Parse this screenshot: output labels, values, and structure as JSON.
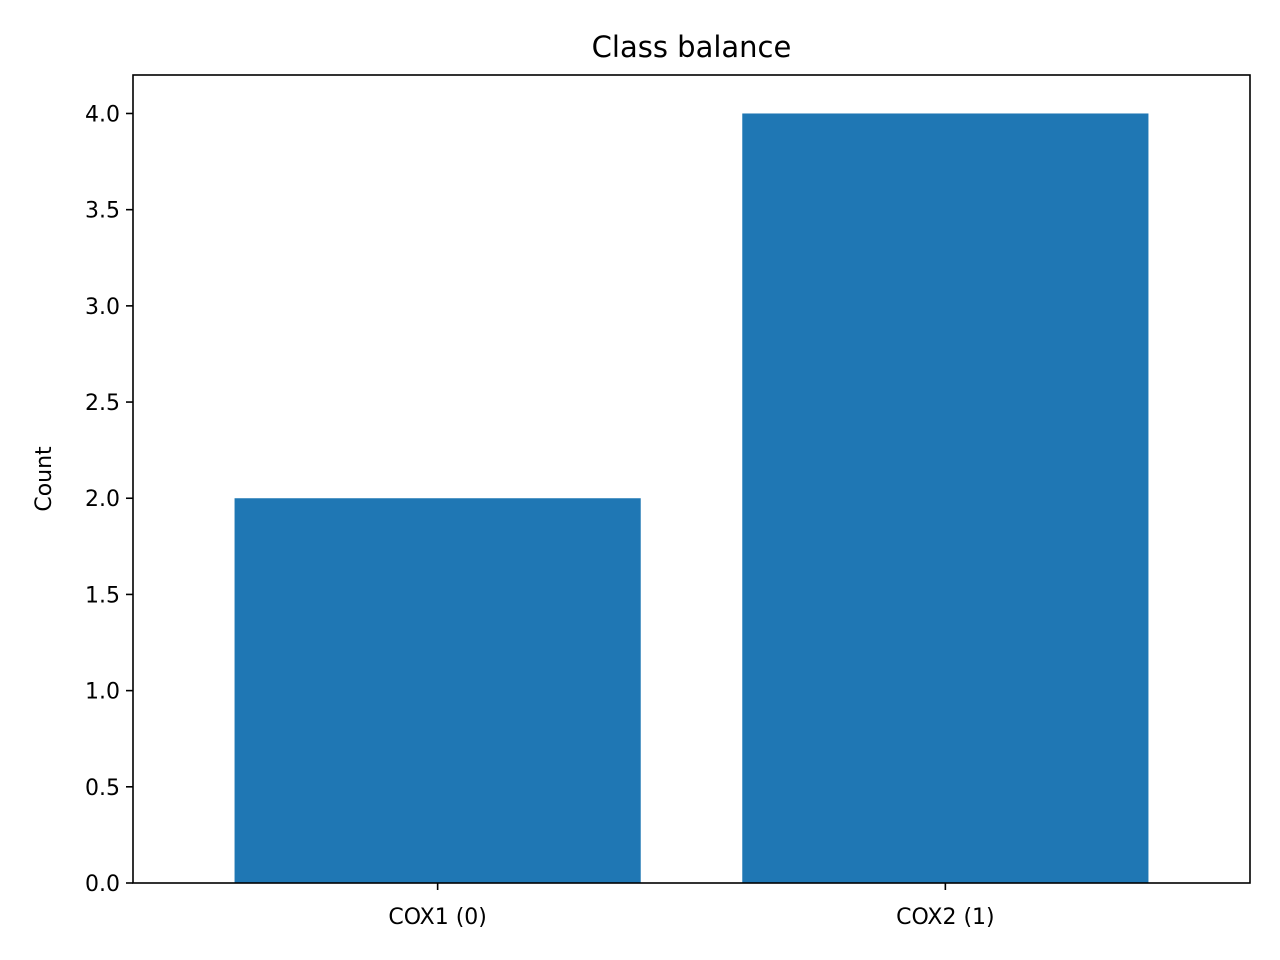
{
  "chart_data": {
    "type": "bar",
    "title": "Class balance",
    "xlabel": "",
    "ylabel": "Count",
    "categories": [
      "COX1 (0)",
      "COX2 (1)"
    ],
    "values": [
      2,
      4
    ],
    "ylim": [
      0,
      4.2
    ],
    "yticks": [
      0.0,
      0.5,
      1.0,
      1.5,
      2.0,
      2.5,
      3.0,
      3.5,
      4.0
    ],
    "ytick_labels": [
      "0.0",
      "0.5",
      "1.0",
      "1.5",
      "2.0",
      "2.5",
      "3.0",
      "3.5",
      "4.0"
    ],
    "bar_color": "#1f77b4",
    "grid": false,
    "legend": "none"
  }
}
